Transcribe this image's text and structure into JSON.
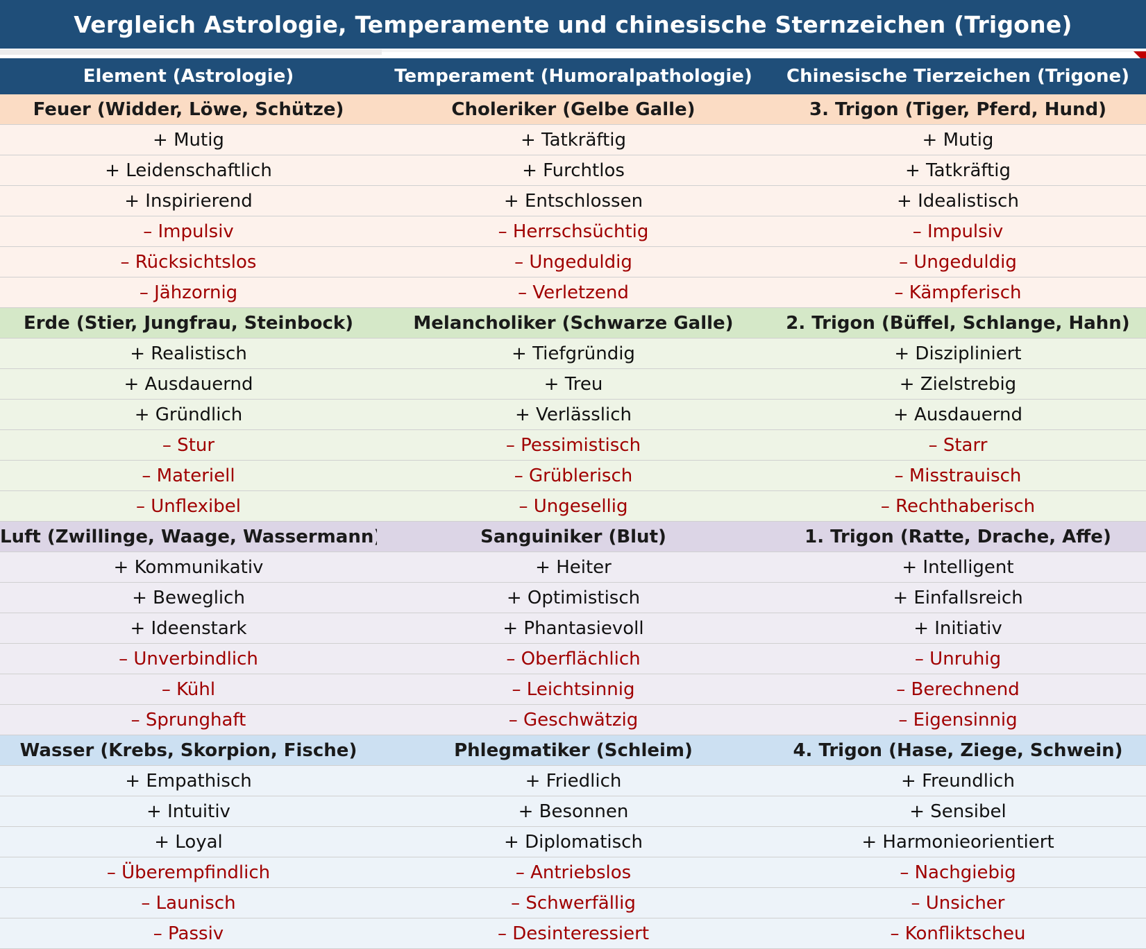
{
  "title": "Vergleich Astrologie, Temperamente und chinesische Sternzeichen (Trigone)",
  "colors": {
    "header_bg": "#1f4e79",
    "header_text": "#ffffff",
    "negative_text": "#a00000",
    "positive_text": "#111111"
  },
  "columns": [
    "Element (Astrologie)",
    "Temperament (Humoralpathologie)",
    "Chinesische Tierzeichen (Trigone)"
  ],
  "groups": [
    {
      "name": "fire",
      "header_bg": "#fbdcc4",
      "row_bg": "#fdf2ec",
      "headers": [
        "Feuer (Widder, Löwe, Schütze)",
        "Choleriker (Gelbe Galle)",
        "3. Trigon (Tiger, Pferd, Hund)"
      ],
      "rows": [
        [
          "+ Mutig",
          "+ Tatkräftig",
          "+ Mutig"
        ],
        [
          "+ Leidenschaftlich",
          "+ Furchtlos",
          "+ Tatkräftig"
        ],
        [
          "+ Inspirierend",
          "+ Entschlossen",
          "+ Idealistisch"
        ],
        [
          "– Impulsiv",
          "– Herrschsüchtig",
          "– Impulsiv"
        ],
        [
          "– Rücksichtslos",
          "– Ungeduldig",
          "– Ungeduldig"
        ],
        [
          "– Jähzornig",
          "– Verletzend",
          "– Kämpferisch"
        ]
      ]
    },
    {
      "name": "earth",
      "header_bg": "#d5e8c8",
      "row_bg": "#eef4e6",
      "headers": [
        "Erde (Stier, Jungfrau, Steinbock)",
        "Melancholiker (Schwarze Galle)",
        "2. Trigon (Büffel, Schlange, Hahn)"
      ],
      "rows": [
        [
          "+ Realistisch",
          "+ Tiefgründig",
          "+ Diszipliniert"
        ],
        [
          "+ Ausdauernd",
          "+ Treu",
          "+ Zielstrebig"
        ],
        [
          "+ Gründlich",
          "+ Verlässlich",
          "+ Ausdauernd"
        ],
        [
          "– Stur",
          "– Pessimistisch",
          "– Starr"
        ],
        [
          "– Materiell",
          "– Grüblerisch",
          "– Misstrauisch"
        ],
        [
          "– Unflexibel",
          "– Ungesellig",
          "– Rechthaberisch"
        ]
      ]
    },
    {
      "name": "air",
      "header_bg": "#dcd5e6",
      "row_bg": "#efecf3",
      "headers": [
        "Luft (Zwillinge, Waage, Wassermann)",
        "Sanguiniker (Blut)",
        "1. Trigon (Ratte, Drache, Affe)"
      ],
      "rows": [
        [
          "+ Kommunikativ",
          "+ Heiter",
          "+ Intelligent"
        ],
        [
          "+ Beweglich",
          "+ Optimistisch",
          "+ Einfallsreich"
        ],
        [
          "+ Ideenstark",
          "+ Phantasievoll",
          "+ Initiativ"
        ],
        [
          "– Unverbindlich",
          "– Oberflächlich",
          "– Unruhig"
        ],
        [
          "– Kühl",
          "– Leichtsinnig",
          "– Berechnend"
        ],
        [
          "– Sprunghaft",
          "– Geschwätzig",
          "– Eigensinnig"
        ]
      ]
    },
    {
      "name": "water",
      "header_bg": "#cce0f2",
      "row_bg": "#edf3f9",
      "headers": [
        "Wasser (Krebs, Skorpion, Fische)",
        "Phlegmatiker (Schleim)",
        "4. Trigon (Hase, Ziege, Schwein)"
      ],
      "rows": [
        [
          "+ Empathisch",
          "+ Friedlich",
          "+ Freundlich"
        ],
        [
          "+ Intuitiv",
          "+ Besonnen",
          "+ Sensibel"
        ],
        [
          "+ Loyal",
          "+ Diplomatisch",
          "+ Harmonieorientiert"
        ],
        [
          "– Überempfindlich",
          "– Antriebslos",
          "– Nachgiebig"
        ],
        [
          "– Launisch",
          "– Schwerfällig",
          "– Unsicher"
        ],
        [
          "– Passiv",
          "– Desinteressiert",
          "– Konfliktscheu"
        ]
      ]
    }
  ]
}
